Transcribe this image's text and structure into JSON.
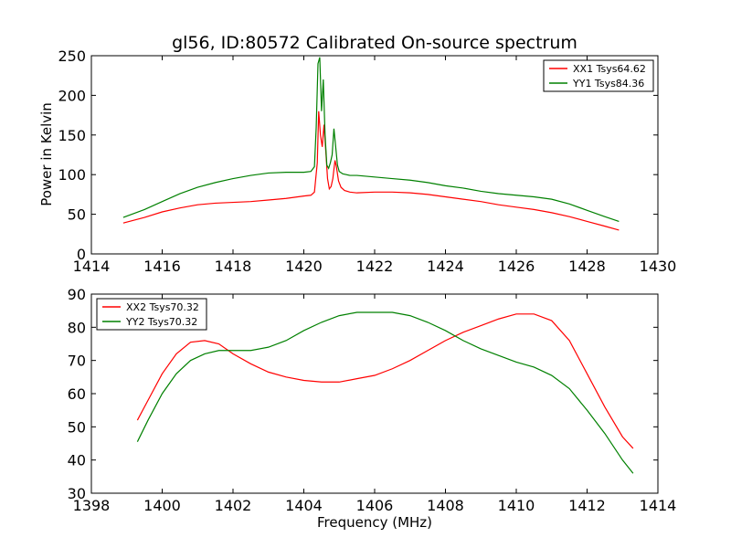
{
  "figure": {
    "title": "gl56, ID:80572 Calibrated On-source spectrum",
    "xlabel": "Frequency (MHz)",
    "ylabel": "Power in Kelvin"
  },
  "chart_data": [
    {
      "type": "line",
      "title": "gl56, ID:80572 Calibrated On-source spectrum",
      "xlabel": "",
      "ylabel": "Power in Kelvin",
      "xlim": [
        1414,
        1430
      ],
      "ylim": [
        0,
        250
      ],
      "xticks": [
        1414,
        1416,
        1418,
        1420,
        1422,
        1424,
        1426,
        1428,
        1430
      ],
      "yticks": [
        0,
        50,
        100,
        150,
        200,
        250
      ],
      "grid": false,
      "legend_position": "top-right",
      "series": [
        {
          "name": "XX1 Tsys64.62",
          "color": "#ff0000",
          "x": [
            1414.9,
            1415.5,
            1416.0,
            1416.5,
            1417.0,
            1417.5,
            1418.0,
            1418.5,
            1419.0,
            1419.5,
            1420.0,
            1420.2,
            1420.3,
            1420.38,
            1420.42,
            1420.47,
            1420.52,
            1420.57,
            1420.62,
            1420.67,
            1420.72,
            1420.77,
            1420.82,
            1420.88,
            1420.92,
            1420.98,
            1421.05,
            1421.15,
            1421.3,
            1421.5,
            1422.0,
            1422.5,
            1423.0,
            1423.5,
            1424.0,
            1424.5,
            1425.0,
            1425.5,
            1426.0,
            1426.5,
            1427.0,
            1427.5,
            1428.0,
            1428.5,
            1428.9
          ],
          "y": [
            39,
            46,
            53,
            58,
            62,
            64,
            65,
            66,
            68,
            70,
            73,
            74,
            78,
            115,
            180,
            150,
            135,
            163,
            130,
            95,
            82,
            85,
            95,
            118,
            110,
            92,
            84,
            80,
            78,
            77,
            78,
            78,
            77,
            75,
            72,
            69,
            66,
            62,
            59,
            56,
            52,
            47,
            41,
            35,
            30
          ]
        },
        {
          "name": "YY1 Tsys84.36",
          "color": "#008000",
          "x": [
            1414.9,
            1415.5,
            1416.0,
            1416.5,
            1417.0,
            1417.5,
            1418.0,
            1418.5,
            1419.0,
            1419.5,
            1420.0,
            1420.2,
            1420.3,
            1420.35,
            1420.4,
            1420.45,
            1420.5,
            1420.55,
            1420.6,
            1420.65,
            1420.7,
            1420.75,
            1420.8,
            1420.85,
            1420.9,
            1420.95,
            1421.0,
            1421.1,
            1421.2,
            1421.3,
            1421.5,
            1422.0,
            1422.5,
            1423.0,
            1423.5,
            1424.0,
            1424.5,
            1425.0,
            1425.5,
            1426.0,
            1426.5,
            1427.0,
            1427.5,
            1428.0,
            1428.5,
            1428.9
          ],
          "y": [
            46,
            56,
            66,
            76,
            84,
            90,
            95,
            99,
            102,
            103,
            103,
            104,
            110,
            160,
            240,
            248,
            180,
            220,
            150,
            112,
            108,
            115,
            125,
            158,
            135,
            112,
            104,
            101,
            100,
            99,
            99,
            97,
            95,
            93,
            90,
            86,
            83,
            79,
            76,
            74,
            72,
            69,
            63,
            55,
            47,
            41
          ]
        }
      ]
    },
    {
      "type": "line",
      "title": "",
      "xlabel": "Frequency (MHz)",
      "ylabel": "",
      "xlim": [
        1398,
        1414
      ],
      "ylim": [
        30,
        90
      ],
      "xticks": [
        1398,
        1400,
        1402,
        1404,
        1406,
        1408,
        1410,
        1412,
        1414
      ],
      "yticks": [
        30,
        40,
        50,
        60,
        70,
        80,
        90
      ],
      "grid": false,
      "legend_position": "top-left",
      "series": [
        {
          "name": "XX2 Tsys70.32",
          "color": "#ff0000",
          "x": [
            1399.3,
            1399.6,
            1400.0,
            1400.4,
            1400.8,
            1401.2,
            1401.6,
            1402.0,
            1402.5,
            1403.0,
            1403.5,
            1404.0,
            1404.5,
            1405.0,
            1405.5,
            1406.0,
            1406.5,
            1407.0,
            1407.5,
            1408.0,
            1408.5,
            1409.0,
            1409.5,
            1410.0,
            1410.5,
            1411.0,
            1411.5,
            1412.0,
            1412.5,
            1413.0,
            1413.3
          ],
          "y": [
            52,
            58,
            66,
            72,
            75.5,
            76,
            75,
            72,
            69,
            66.5,
            65,
            64,
            63.5,
            63.5,
            64.5,
            65.5,
            67.5,
            70,
            73,
            76,
            78.5,
            80.5,
            82.5,
            84,
            84,
            82,
            76,
            66,
            56,
            47,
            43.5
          ]
        },
        {
          "name": "YY2 Tsys70.32",
          "color": "#008000",
          "x": [
            1399.3,
            1399.6,
            1400.0,
            1400.4,
            1400.8,
            1401.2,
            1401.6,
            1402.0,
            1402.5,
            1403.0,
            1403.5,
            1404.0,
            1404.5,
            1405.0,
            1405.5,
            1406.0,
            1406.5,
            1407.0,
            1407.5,
            1408.0,
            1408.5,
            1409.0,
            1409.5,
            1410.0,
            1410.5,
            1411.0,
            1411.5,
            1412.0,
            1412.5,
            1413.0,
            1413.3
          ],
          "y": [
            45.5,
            52,
            60,
            66,
            70,
            72,
            73,
            73,
            73,
            74,
            76,
            79,
            81.5,
            83.5,
            84.5,
            84.5,
            84.5,
            83.5,
            81.5,
            79,
            76,
            73.5,
            71.5,
            69.5,
            68,
            65.5,
            61.5,
            55,
            48,
            40,
            36
          ]
        }
      ]
    }
  ]
}
